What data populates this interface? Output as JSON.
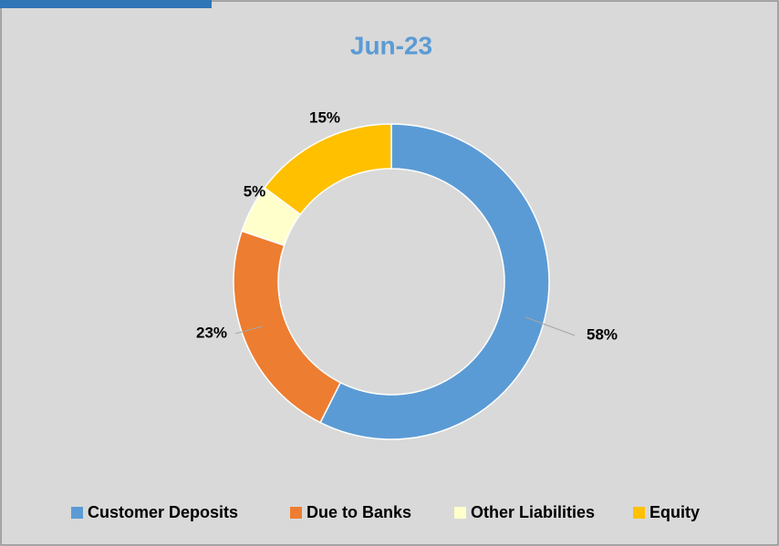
{
  "chart_data": {
    "type": "donut",
    "title": "Jun-23",
    "categories": [
      "Customer Deposits",
      "Due to Banks",
      "Other Liabilities",
      "Equity"
    ],
    "values": [
      58,
      23,
      5,
      15
    ],
    "value_labels": [
      "58%",
      "23%",
      "5%",
      "15%"
    ],
    "colors": [
      "#5b9bd5",
      "#ed7d31",
      "#ffffcc",
      "#ffc000"
    ],
    "legend": "bottom"
  }
}
